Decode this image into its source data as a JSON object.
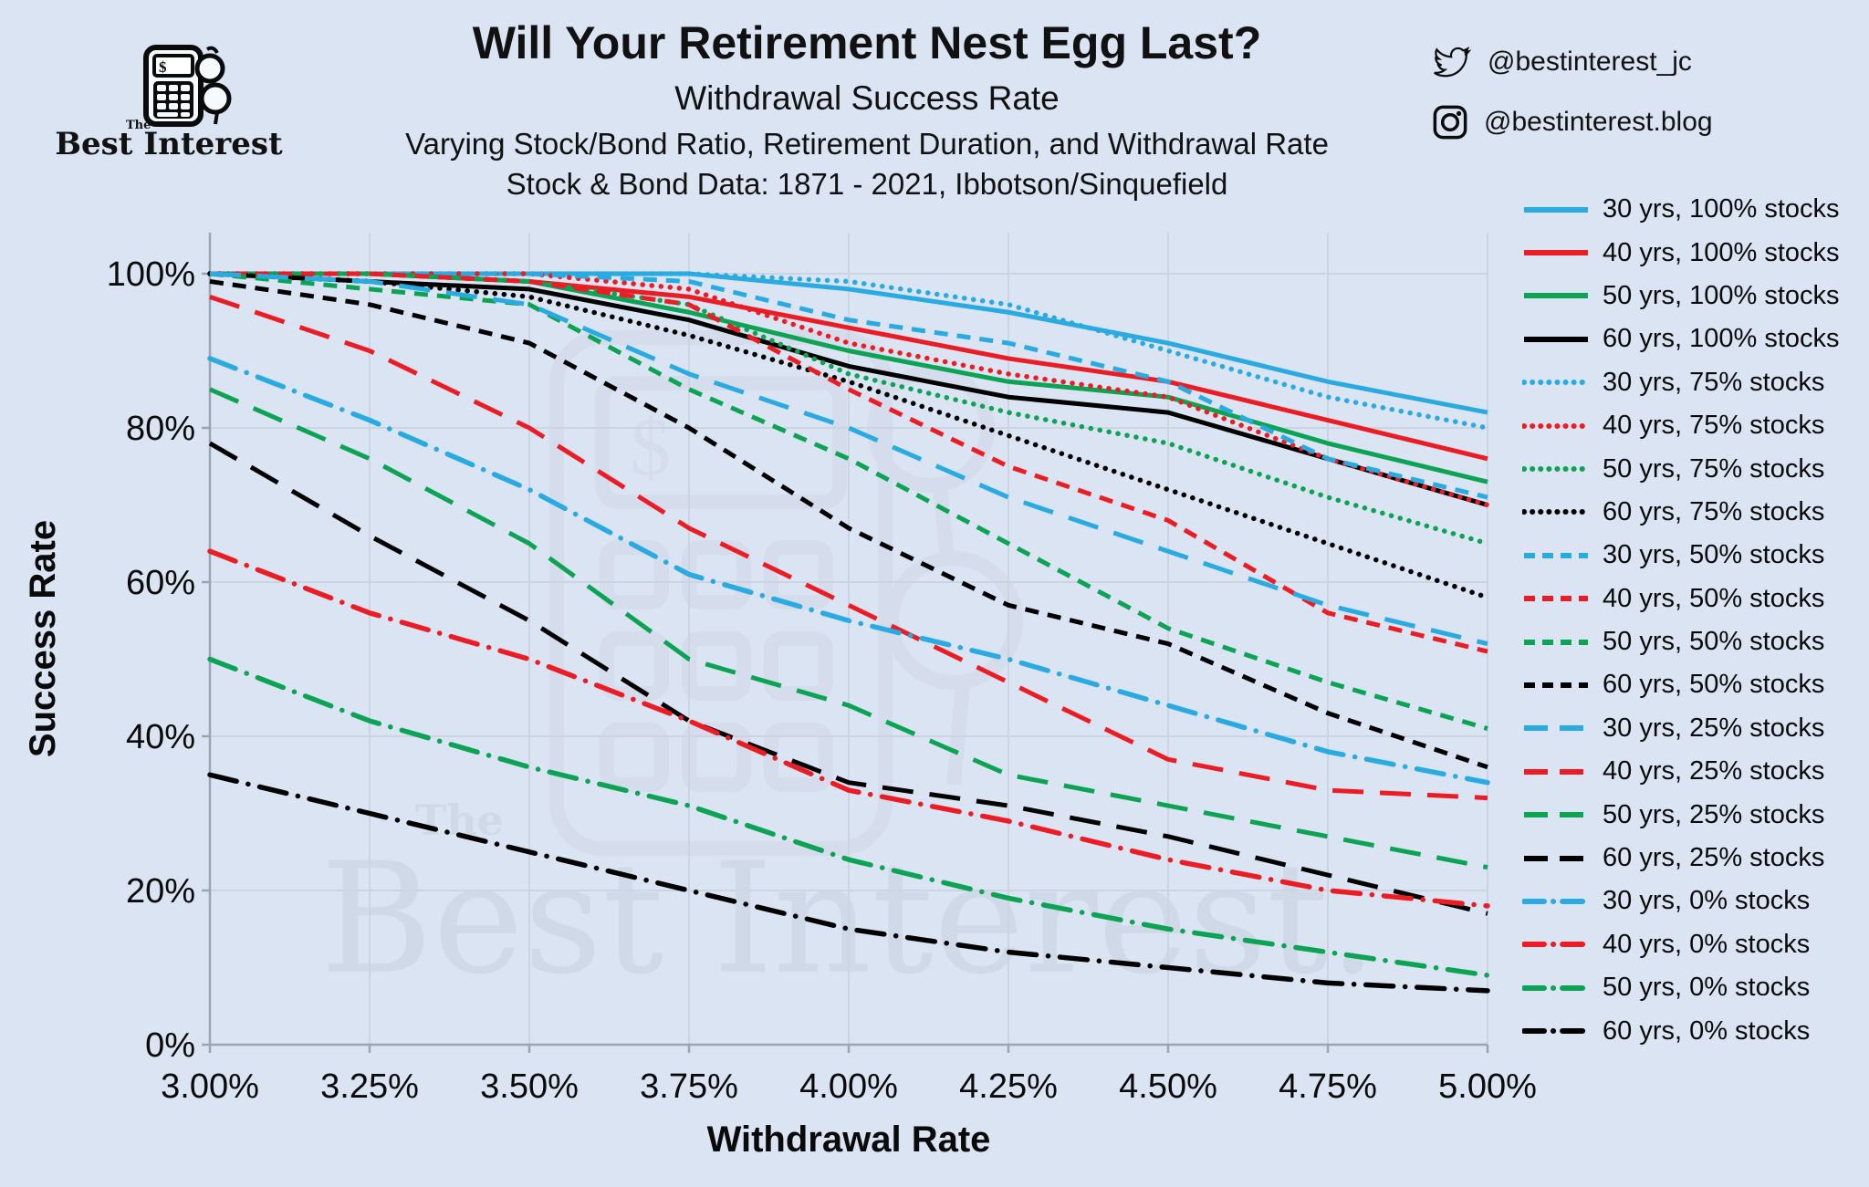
{
  "page": {
    "background": "#dbe4f2",
    "grid_color": "#ccd4e2",
    "axis_color": "#9aa5b4",
    "watermark_color": "#c7d0de"
  },
  "brand": {
    "the": "The",
    "name": "Best Interest"
  },
  "header": {
    "title": "Will Your Retirement Nest Egg Last?",
    "subtitle": "Withdrawal Success Rate",
    "line3": "Varying Stock/Bond Ratio, Retirement Duration, and Withdrawal Rate",
    "line4": "Stock & Bond Data: 1871 - 2021, Ibbotson/Sinquefield"
  },
  "social": {
    "twitter_handle": "@bestinterest_jc",
    "instagram_handle": "@bestinterest.blog"
  },
  "watermark": {
    "the": "The",
    "text": "Best Interest."
  },
  "chart_data": {
    "type": "line",
    "title": "Withdrawal Success Rate",
    "xlabel": "Withdrawal Rate",
    "ylabel": "Success Rate",
    "x": [
      3.0,
      3.25,
      3.5,
      3.75,
      4.0,
      4.25,
      4.5,
      4.75,
      5.0
    ],
    "x_tick_labels": [
      "3.00%",
      "3.25%",
      "3.50%",
      "3.75%",
      "4.00%",
      "4.25%",
      "4.50%",
      "4.75%",
      "5.00%"
    ],
    "y_ticks": [
      0,
      20,
      40,
      60,
      80,
      100
    ],
    "y_tick_labels": [
      "0%",
      "20%",
      "40%",
      "60%",
      "80%",
      "100%"
    ],
    "xlim": [
      3.0,
      5.0
    ],
    "ylim": [
      0,
      100
    ],
    "grid": true,
    "legend_position": "right",
    "series": [
      {
        "name": "30 yrs, 100% stocks",
        "color": "#29abe2",
        "dash": "solid",
        "values": [
          100,
          100,
          100,
          100,
          98,
          95,
          91,
          86,
          82
        ]
      },
      {
        "name": "40 yrs, 100% stocks",
        "color": "#ec1c24",
        "dash": "solid",
        "values": [
          100,
          100,
          99,
          97,
          93,
          89,
          86,
          81,
          76
        ]
      },
      {
        "name": "50 yrs, 100% stocks",
        "color": "#0ca454",
        "dash": "solid",
        "values": [
          100,
          100,
          99,
          95,
          90,
          86,
          84,
          78,
          73
        ]
      },
      {
        "name": "60 yrs, 100% stocks",
        "color": "#000000",
        "dash": "solid",
        "values": [
          100,
          99,
          98,
          94,
          88,
          84,
          82,
          76,
          70
        ]
      },
      {
        "name": "30 yrs, 75% stocks",
        "color": "#29abe2",
        "dash": "dotted",
        "values": [
          100,
          100,
          100,
          100,
          99,
          96,
          90,
          84,
          80
        ]
      },
      {
        "name": "40 yrs, 75% stocks",
        "color": "#ec1c24",
        "dash": "dotted",
        "values": [
          100,
          100,
          100,
          98,
          91,
          87,
          84,
          76,
          70
        ]
      },
      {
        "name": "50 yrs, 75% stocks",
        "color": "#0ca454",
        "dash": "dotted",
        "values": [
          100,
          100,
          99,
          96,
          87,
          82,
          78,
          71,
          65
        ]
      },
      {
        "name": "60 yrs, 75% stocks",
        "color": "#000000",
        "dash": "dotted",
        "values": [
          100,
          99,
          97,
          92,
          86,
          79,
          72,
          65,
          58
        ]
      },
      {
        "name": "30 yrs, 50% stocks",
        "color": "#29abe2",
        "dash": "dash",
        "values": [
          100,
          100,
          100,
          99,
          94,
          91,
          86,
          76,
          71
        ]
      },
      {
        "name": "40 yrs, 50% stocks",
        "color": "#ec1c24",
        "dash": "dash",
        "values": [
          100,
          100,
          99,
          96,
          85,
          75,
          68,
          56,
          51
        ]
      },
      {
        "name": "50 yrs, 50% stocks",
        "color": "#0ca454",
        "dash": "dash",
        "values": [
          100,
          98,
          96,
          85,
          76,
          65,
          54,
          47,
          41
        ]
      },
      {
        "name": "60 yrs, 50% stocks",
        "color": "#000000",
        "dash": "dash",
        "values": [
          99,
          96,
          91,
          80,
          67,
          57,
          52,
          43,
          36
        ]
      },
      {
        "name": "30 yrs, 25% stocks",
        "color": "#29abe2",
        "dash": "longdash",
        "values": [
          100,
          99,
          96,
          87,
          80,
          71,
          64,
          57,
          52
        ]
      },
      {
        "name": "40 yrs, 25% stocks",
        "color": "#ec1c24",
        "dash": "longdash",
        "values": [
          97,
          90,
          80,
          67,
          57,
          47,
          37,
          33,
          32
        ]
      },
      {
        "name": "50 yrs, 25% stocks",
        "color": "#0ca454",
        "dash": "longdash",
        "values": [
          85,
          76,
          65,
          50,
          44,
          35,
          31,
          27,
          23
        ]
      },
      {
        "name": "60 yrs, 25% stocks",
        "color": "#000000",
        "dash": "longdash",
        "values": [
          78,
          66,
          55,
          42,
          34,
          31,
          27,
          22,
          17
        ]
      },
      {
        "name": "30 yrs, 0% stocks",
        "color": "#29abe2",
        "dash": "dashdot",
        "values": [
          89,
          81,
          72,
          61,
          55,
          50,
          44,
          38,
          34
        ]
      },
      {
        "name": "40 yrs, 0% stocks",
        "color": "#ec1c24",
        "dash": "dashdot",
        "values": [
          64,
          56,
          50,
          42,
          33,
          29,
          24,
          20,
          18
        ]
      },
      {
        "name": "50 yrs, 0% stocks",
        "color": "#0ca454",
        "dash": "dashdot",
        "values": [
          50,
          42,
          36,
          31,
          24,
          19,
          15,
          12,
          9
        ]
      },
      {
        "name": "60 yrs, 0% stocks",
        "color": "#000000",
        "dash": "dashdot",
        "values": [
          35,
          30,
          25,
          20,
          15,
          12,
          10,
          8,
          7
        ]
      }
    ]
  }
}
